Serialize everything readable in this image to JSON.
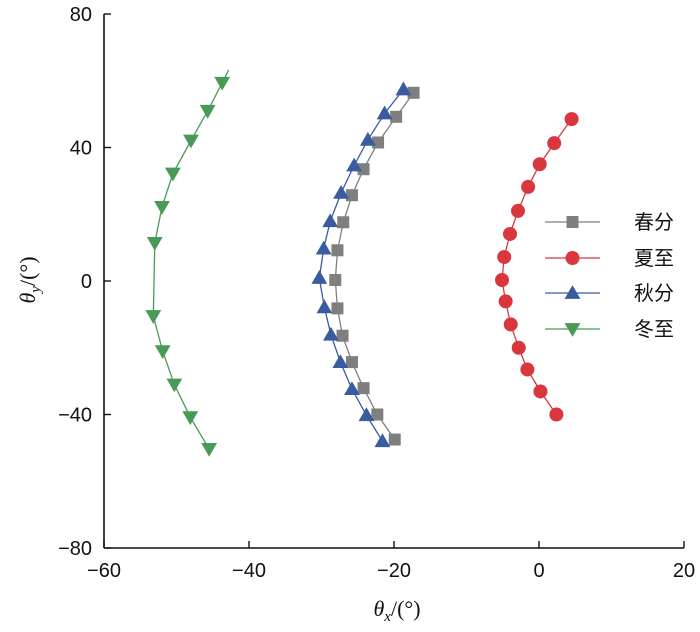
{
  "chart_data": {
    "type": "line",
    "title": "",
    "xlabel_symbol": "θ",
    "xlabel_sub": "x",
    "xlabel_unit": "/(°)",
    "ylabel_symbol": "θ",
    "ylabel_sub": "y",
    "ylabel_unit": "/(°)",
    "xlim": [
      -60,
      20
    ],
    "ylim": [
      -80,
      80
    ],
    "xticks": [
      -60,
      -40,
      -20,
      0,
      20
    ],
    "yticks": [
      -80,
      -40,
      0,
      40,
      80
    ],
    "grid": false,
    "legend_position": "right",
    "series": [
      {
        "name": "春分",
        "color": "#7f7f7f",
        "marker": "square",
        "points": [
          [
            -17.3,
            56.4
          ],
          [
            -19.7,
            49.2
          ],
          [
            -22.2,
            41.5
          ],
          [
            -24.2,
            33.5
          ],
          [
            -25.8,
            25.7
          ],
          [
            -27.0,
            17.6
          ],
          [
            -27.8,
            9.2
          ],
          [
            -28.1,
            0.3
          ],
          [
            -27.8,
            -8.2
          ],
          [
            -27.1,
            -16.4
          ],
          [
            -25.8,
            -24.3
          ],
          [
            -24.2,
            -32.1
          ],
          [
            -22.3,
            -40.0
          ],
          [
            -19.9,
            -47.5
          ]
        ]
      },
      {
        "name": "夏至",
        "color": "#d9363e",
        "marker": "circle",
        "points": [
          [
            4.5,
            48.5
          ],
          [
            2.1,
            41.3
          ],
          [
            0.1,
            35.0
          ],
          [
            -1.5,
            28.2
          ],
          [
            -2.9,
            21.0
          ],
          [
            -4.0,
            14.1
          ],
          [
            -4.8,
            7.2
          ],
          [
            -5.1,
            0.3
          ],
          [
            -4.6,
            -6.1
          ],
          [
            -3.9,
            -13.0
          ],
          [
            -2.8,
            -20.0
          ],
          [
            -1.6,
            -26.5
          ],
          [
            0.2,
            -33.1
          ],
          [
            2.4,
            -40.0
          ]
        ]
      },
      {
        "name": "秋分",
        "color": "#3a5ba0",
        "marker": "triangle-up",
        "points": [
          [
            -18.7,
            57.4
          ],
          [
            -21.3,
            50.2
          ],
          [
            -23.6,
            42.3
          ],
          [
            -25.5,
            34.6
          ],
          [
            -27.3,
            26.4
          ],
          [
            -28.8,
            17.9
          ],
          [
            -29.7,
            9.7
          ],
          [
            -30.3,
            0.9
          ],
          [
            -29.6,
            -7.9
          ],
          [
            -28.7,
            -16.1
          ],
          [
            -27.4,
            -24.3
          ],
          [
            -25.8,
            -32.4
          ],
          [
            -23.8,
            -40.2
          ],
          [
            -21.6,
            -48.0
          ]
        ]
      },
      {
        "name": "冬至",
        "color": "#4a9a57",
        "marker": "triangle-down",
        "points": [
          [
            -42.8,
            63.2
          ],
          [
            -43.7,
            59.4
          ],
          [
            -45.7,
            51.0
          ],
          [
            -48.0,
            42.1
          ],
          [
            -50.5,
            32.2
          ],
          [
            -52.0,
            22.2
          ],
          [
            -53.0,
            11.4
          ],
          [
            -53.2,
            -10.5
          ],
          [
            -51.9,
            -21.0
          ],
          [
            -50.3,
            -31.0
          ],
          [
            -48.1,
            -40.8
          ],
          [
            -45.5,
            -50.3
          ]
        ],
        "marker_indices": [
          1,
          2,
          3,
          4,
          5,
          6,
          7,
          8,
          9,
          10,
          11
        ]
      }
    ]
  }
}
